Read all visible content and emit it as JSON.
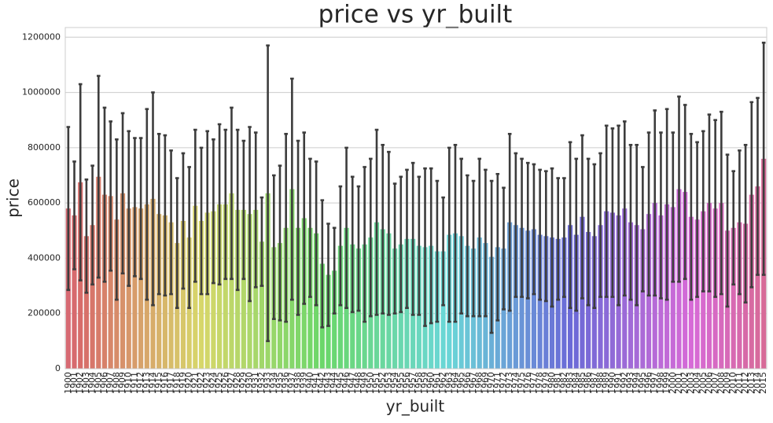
{
  "chart_data": {
    "type": "bar",
    "title": "price vs yr_built",
    "x_label": "yr_built",
    "y_label": "price",
    "palette": "husl",
    "grid": true,
    "error_color": "#3d3d3d",
    "categories": [
      "1900",
      "1901",
      "1902",
      "1903",
      "1904",
      "1905",
      "1906",
      "1907",
      "1908",
      "1909",
      "1910",
      "1911",
      "1912",
      "1913",
      "1914",
      "1915",
      "1916",
      "1917",
      "1918",
      "1919",
      "1920",
      "1921",
      "1922",
      "1923",
      "1924",
      "1925",
      "1926",
      "1927",
      "1928",
      "1929",
      "1930",
      "1931",
      "1932",
      "1933",
      "1934",
      "1935",
      "1936",
      "1937",
      "1938",
      "1939",
      "1940",
      "1941",
      "1942",
      "1943",
      "1944",
      "1945",
      "1946",
      "1947",
      "1948",
      "1949",
      "1950",
      "1951",
      "1952",
      "1953",
      "1954",
      "1955",
      "1956",
      "1957",
      "1958",
      "1959",
      "1960",
      "1961",
      "1962",
      "1963",
      "1964",
      "1965",
      "1966",
      "1967",
      "1968",
      "1969",
      "1970",
      "1971",
      "1972",
      "1973",
      "1974",
      "1975",
      "1976",
      "1977",
      "1978",
      "1979",
      "1980",
      "1981",
      "1982",
      "1983",
      "1984",
      "1985",
      "1986",
      "1987",
      "1988",
      "1989",
      "1990",
      "1991",
      "1992",
      "1993",
      "1994",
      "1995",
      "1996",
      "1997",
      "1998",
      "1999",
      "2000",
      "2001",
      "2002",
      "2003",
      "2004",
      "2005",
      "2006",
      "2007",
      "2008",
      "2009",
      "2010",
      "2011",
      "2012",
      "2013",
      "2014",
      "2015"
    ],
    "values": [
      580000,
      555000,
      675000,
      480000,
      520000,
      695000,
      630000,
      625000,
      540000,
      635000,
      580000,
      585000,
      580000,
      595000,
      615000,
      560000,
      555000,
      530000,
      455000,
      535000,
      475000,
      590000,
      535000,
      565000,
      570000,
      595000,
      595000,
      635000,
      575000,
      575000,
      560000,
      575000,
      460000,
      635000,
      440000,
      455000,
      510000,
      650000,
      510000,
      545000,
      510000,
      490000,
      380000,
      340000,
      355000,
      445000,
      510000,
      450000,
      435000,
      450000,
      475000,
      530000,
      505000,
      490000,
      435000,
      450000,
      470000,
      470000,
      445000,
      440000,
      445000,
      425000,
      425000,
      485000,
      490000,
      480000,
      445000,
      435000,
      475000,
      455000,
      405000,
      440000,
      435000,
      530000,
      520000,
      510000,
      500000,
      505000,
      485000,
      480000,
      475000,
      470000,
      475000,
      520000,
      485000,
      550000,
      495000,
      480000,
      520000,
      570000,
      565000,
      555000,
      580000,
      530000,
      520000,
      505000,
      560000,
      600000,
      555000,
      595000,
      585000,
      650000,
      640000,
      550000,
      540000,
      570000,
      600000,
      580000,
      600000,
      500000,
      510000,
      530000,
      525000,
      630000,
      660000,
      760000
    ],
    "errors": [
      295000,
      195000,
      355000,
      205000,
      215000,
      365000,
      315000,
      270000,
      290000,
      290000,
      280000,
      250000,
      255000,
      345000,
      385000,
      290000,
      290000,
      260000,
      235000,
      245000,
      255000,
      275000,
      265000,
      295000,
      260000,
      290000,
      270000,
      310000,
      290000,
      250000,
      315000,
      280000,
      160000,
      535000,
      260000,
      280000,
      340000,
      400000,
      315000,
      310000,
      250000,
      260000,
      230000,
      185000,
      155000,
      215000,
      290000,
      245000,
      225000,
      280000,
      285000,
      335000,
      305000,
      295000,
      235000,
      245000,
      250000,
      275000,
      250000,
      285000,
      280000,
      255000,
      195000,
      315000,
      320000,
      280000,
      255000,
      245000,
      285000,
      265000,
      275000,
      265000,
      220000,
      320000,
      260000,
      250000,
      245000,
      235000,
      235000,
      235000,
      250000,
      220000,
      215000,
      300000,
      275000,
      295000,
      265000,
      260000,
      260000,
      310000,
      305000,
      325000,
      315000,
      280000,
      290000,
      225000,
      295000,
      335000,
      300000,
      345000,
      270000,
      335000,
      315000,
      300000,
      280000,
      290000,
      320000,
      320000,
      330000,
      275000,
      205000,
      260000,
      285000,
      335000,
      320000,
      420000
    ],
    "ylim": [
      0,
      1235000
    ],
    "yticks": [
      0,
      200000,
      400000,
      600000,
      800000,
      1000000,
      1200000
    ]
  }
}
